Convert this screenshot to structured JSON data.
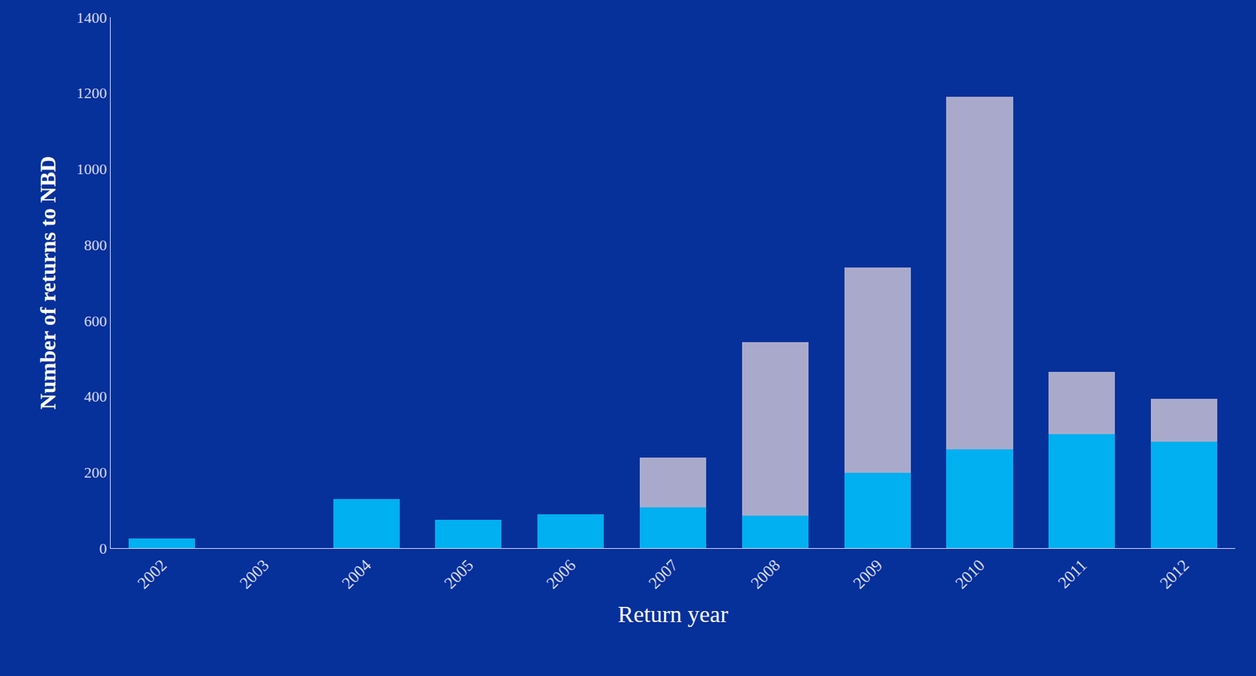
{
  "chart_data": {
    "type": "bar",
    "stacked": true,
    "x_label": "Return year",
    "y_label": "Number of returns to NBD",
    "categories": [
      "2002",
      "2003",
      "2004",
      "2005",
      "2006",
      "2007",
      "2008",
      "2009",
      "2010",
      "2011",
      "2012"
    ],
    "series": [
      {
        "color": "#00b0f0",
        "values": [
          25,
          0,
          130,
          75,
          90,
          107,
          86,
          199,
          260,
          300,
          281
        ]
      },
      {
        "color": "#a9aacb",
        "values": [
          0,
          0,
          0,
          0,
          0,
          132,
          457,
          541,
          931,
          165,
          113
        ]
      }
    ],
    "ylim": [
      0,
      1400
    ],
    "yticks": [
      0,
      200,
      400,
      600,
      800,
      1000,
      1200,
      1400
    ],
    "grid": false
  }
}
